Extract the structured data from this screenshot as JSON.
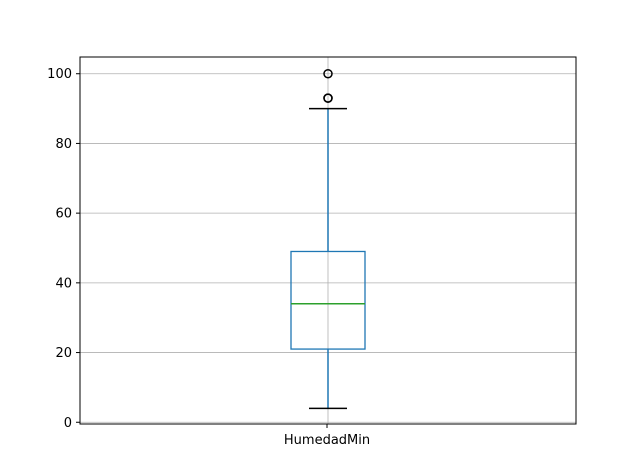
{
  "chart_data": {
    "type": "boxplot",
    "categories": [
      "HumedadMin"
    ],
    "series": [
      {
        "whisker_low": 4,
        "q1": 21,
        "median": 34,
        "q3": 49,
        "whisker_high": 90,
        "outliers": [
          93,
          93,
          100
        ]
      }
    ],
    "ylim": [
      -0.5,
      104.8
    ],
    "yticks": [
      "0",
      "20",
      "40",
      "60",
      "80",
      "100"
    ],
    "grid": true,
    "colors": {
      "box": "#1f77b4",
      "whisker": "#1f77b4",
      "cap": "#000000",
      "median": "#2ca02c",
      "flier": "#000000",
      "grid": "#b0b0b0"
    }
  }
}
